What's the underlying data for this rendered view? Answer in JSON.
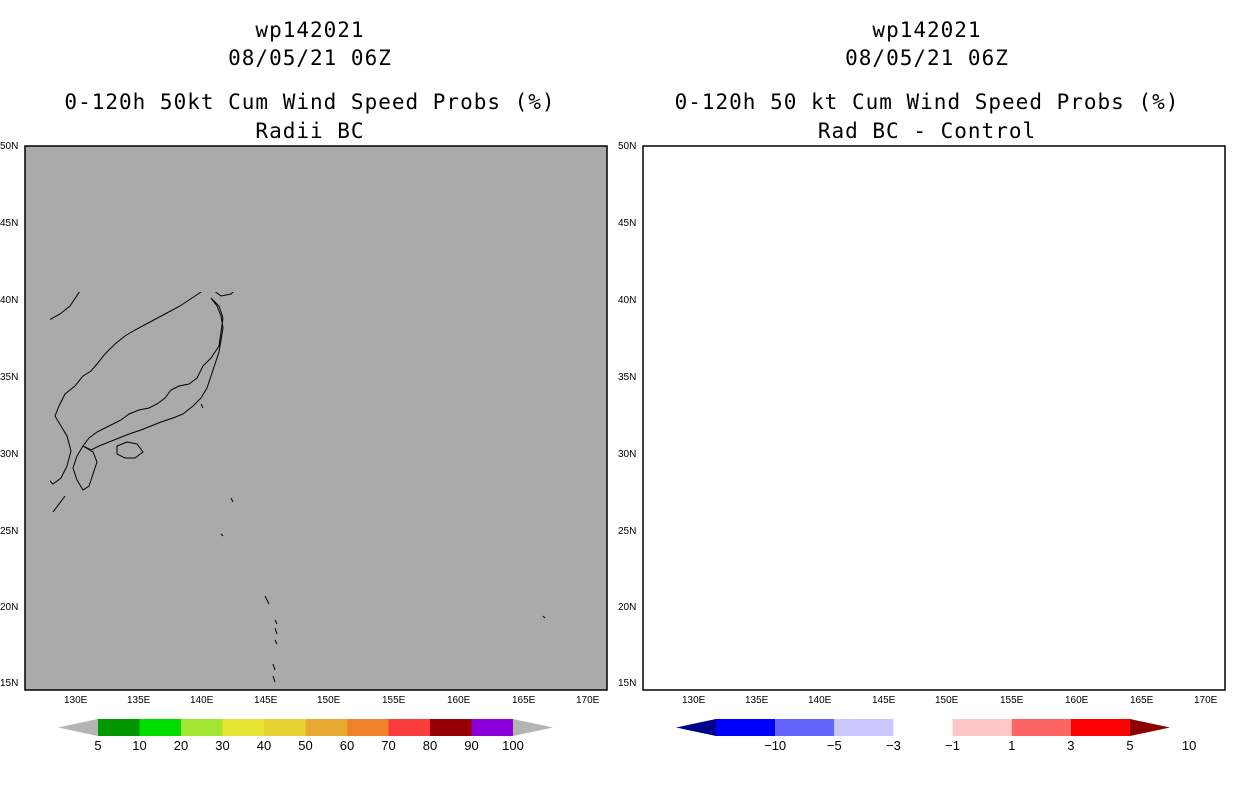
{
  "left_panel": {
    "title_line1": "wp142021",
    "title_line2": "08/05/21 06Z",
    "title_line3": "0-120h 50kt Cum Wind Speed Probs (%)",
    "title_line4": "Radii BC",
    "background_color": "#aaaaaa",
    "colorbar": {
      "labels": [
        "5",
        "10",
        "20",
        "30",
        "40",
        "50",
        "60",
        "70",
        "80",
        "90",
        "100"
      ],
      "colors": [
        "#b4b4b4",
        "#009600",
        "#00dc00",
        "#a0e632",
        "#e6e632",
        "#e6d232",
        "#e6aa32",
        "#f08228",
        "#fa3c3c",
        "#960000",
        "#8c00dc",
        "#b4b4b4"
      ]
    }
  },
  "right_panel": {
    "title_line1": "wp142021",
    "title_line2": "08/05/21 06Z",
    "title_line3": "0-120h 50 kt Cum Wind Speed Probs (%)",
    "title_line4": "Rad BC - Control",
    "colorbar": {
      "labels": [
        "−10",
        "−5",
        "−3",
        "−1",
        "1",
        "3",
        "5",
        "10"
      ],
      "colors": [
        "#00008c",
        "#0000ff",
        "#6464ff",
        "#c8c8ff",
        "#ffffff",
        "#ffc8c8",
        "#ff6464",
        "#ff0000",
        "#8c0000"
      ]
    },
    "shading": {
      "light_color": "#c8c8ff",
      "medium_color": "#6464ff",
      "dark_color": "#0000ff"
    }
  },
  "map": {
    "lon_labels": [
      "130E",
      "135E",
      "140E",
      "145E",
      "150E",
      "155E",
      "160E",
      "165E",
      "170E"
    ],
    "lat_labels": [
      "50N",
      "45N",
      "40N",
      "35N",
      "30N",
      "25N",
      "20N",
      "15N"
    ]
  }
}
